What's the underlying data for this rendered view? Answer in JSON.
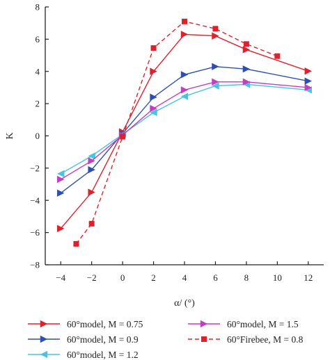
{
  "chart_data": {
    "type": "line",
    "xlabel": "α/ (°)",
    "ylabel": "K",
    "xlim": [
      -5,
      13
    ],
    "ylim": [
      -8,
      8
    ],
    "xticks": [
      -4,
      -2,
      0,
      2,
      4,
      6,
      8,
      10,
      12
    ],
    "yticks": [
      -8,
      -6,
      -4,
      -2,
      0,
      2,
      4,
      6,
      8
    ],
    "grid": false,
    "legend_position": "bottom",
    "series": [
      {
        "name": "60°model, M = 0.75",
        "color": "#e0202a",
        "marker": "triangle-right",
        "dashed": false,
        "x": [
          -4,
          -2,
          0,
          2,
          4,
          6,
          8,
          12
        ],
        "y": [
          -5.75,
          -3.5,
          0.25,
          4.0,
          6.3,
          6.2,
          5.35,
          4.02
        ]
      },
      {
        "name": "60°model, M = 0.9",
        "color": "#2d4fb0",
        "marker": "triangle-right",
        "dashed": false,
        "x": [
          -4,
          -2,
          0,
          2,
          4,
          6,
          8,
          12
        ],
        "y": [
          -3.55,
          -2.1,
          0.15,
          2.4,
          3.8,
          4.3,
          4.15,
          3.4
        ]
      },
      {
        "name": "60°model, M = 1.2",
        "color": "#46c4e6",
        "marker": "triangle-left",
        "dashed": false,
        "x": [
          -4,
          -2,
          0,
          2,
          4,
          6,
          8,
          12
        ],
        "y": [
          -2.35,
          -1.25,
          0.1,
          1.45,
          2.45,
          3.1,
          3.2,
          2.85
        ]
      },
      {
        "name": "60°model, M = 1.5",
        "color": "#c23fbf",
        "marker": "triangle-right",
        "dashed": false,
        "x": [
          -4,
          -2,
          0,
          2,
          4,
          6,
          8,
          12
        ],
        "y": [
          -2.7,
          -1.55,
          0.05,
          1.7,
          2.85,
          3.35,
          3.35,
          3.0
        ]
      },
      {
        "name": "60°Firebee, M = 0.8",
        "color": "#e0202a",
        "marker": "square",
        "dashed": true,
        "x": [
          -3,
          -2,
          0,
          2,
          4,
          6,
          8,
          10
        ],
        "y": [
          -6.7,
          -5.45,
          -0.05,
          5.45,
          7.1,
          6.65,
          5.7,
          4.95
        ]
      }
    ]
  }
}
